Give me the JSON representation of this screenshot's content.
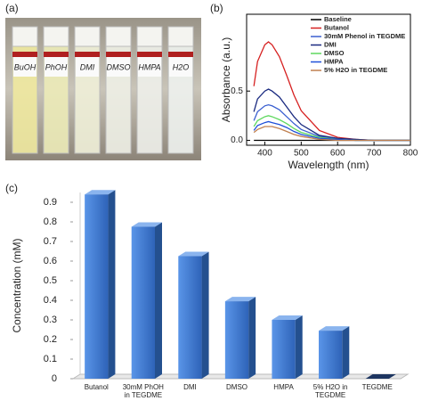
{
  "photo": {
    "panel_label": "(a)",
    "vial_labels": [
      "BuOH",
      "PhOH",
      "DMI",
      "DMSO",
      "HMPA",
      "H2O"
    ]
  },
  "chart_data": [
    {
      "type": "line",
      "panel_label": "(b)",
      "x_label": "Wavelength (nm)",
      "y_label": "Absorbance (a.u.)",
      "x": [
        370,
        380,
        400,
        410,
        420,
        440,
        460,
        480,
        500,
        550,
        600,
        650,
        700,
        750,
        800
      ],
      "xlim": [
        350,
        800
      ],
      "xticks": [
        400,
        500,
        600,
        700,
        800
      ],
      "ylim": [
        -0.05,
        1.28
      ],
      "yticks": [
        {
          "value": 0,
          "label": "0.0"
        },
        0.5
      ],
      "series": [
        {
          "name": "Baseline",
          "color": "#000000",
          "values": [
            0,
            0,
            0,
            0,
            0,
            0,
            0,
            0,
            0,
            0,
            0,
            0,
            0,
            0,
            0
          ]
        },
        {
          "name": "Butanol",
          "color": "#d62020",
          "values": [
            0.55,
            0.8,
            0.97,
            1.0,
            0.97,
            0.85,
            0.66,
            0.46,
            0.3,
            0.1,
            0.03,
            0.01,
            0,
            0,
            0
          ]
        },
        {
          "name": "30mM Phenol in TEGDME",
          "color": "#3a5fd0",
          "values": [
            0.2,
            0.29,
            0.35,
            0.36,
            0.35,
            0.31,
            0.24,
            0.17,
            0.11,
            0.04,
            0.01,
            0,
            0,
            0,
            0
          ]
        },
        {
          "name": "DMI",
          "color": "#1a2a80",
          "values": [
            0.29,
            0.42,
            0.5,
            0.52,
            0.5,
            0.44,
            0.34,
            0.24,
            0.16,
            0.05,
            0.02,
            0.01,
            0,
            0,
            0
          ]
        },
        {
          "name": "DMSO",
          "color": "#5fd85f",
          "values": [
            0.14,
            0.2,
            0.24,
            0.25,
            0.24,
            0.21,
            0.17,
            0.12,
            0.08,
            0.03,
            0.01,
            0,
            0,
            0,
            0
          ]
        },
        {
          "name": "HMPA",
          "color": "#1f50d8",
          "values": [
            0.1,
            0.15,
            0.18,
            0.19,
            0.18,
            0.16,
            0.13,
            0.09,
            0.06,
            0.02,
            0.01,
            0,
            0,
            0,
            0
          ]
        },
        {
          "name": "5% H2O in TEGDME",
          "color": "#c08050",
          "values": [
            0.08,
            0.11,
            0.14,
            0.14,
            0.14,
            0.12,
            0.09,
            0.06,
            0.04,
            0.01,
            0,
            0,
            0,
            0,
            0
          ]
        }
      ],
      "legend": "upper right"
    },
    {
      "type": "bar",
      "panel_label": "(c)",
      "y_label": "Concentration (mM)",
      "categories": [
        "Butanol",
        "30mM PhOH in TEGDME",
        "DMI",
        "DMSO",
        "HMPA",
        "5% H2O in TEGDME",
        "TEGDME"
      ],
      "values": [
        0.94,
        0.775,
        0.625,
        0.395,
        0.3,
        0.245,
        0
      ],
      "color": "#3f7bd6",
      "ylim": [
        0,
        0.95
      ],
      "yticks": [
        0,
        0.1,
        0.2,
        0.3,
        0.4,
        0.5,
        0.6,
        0.7,
        0.8,
        0.9
      ]
    }
  ]
}
